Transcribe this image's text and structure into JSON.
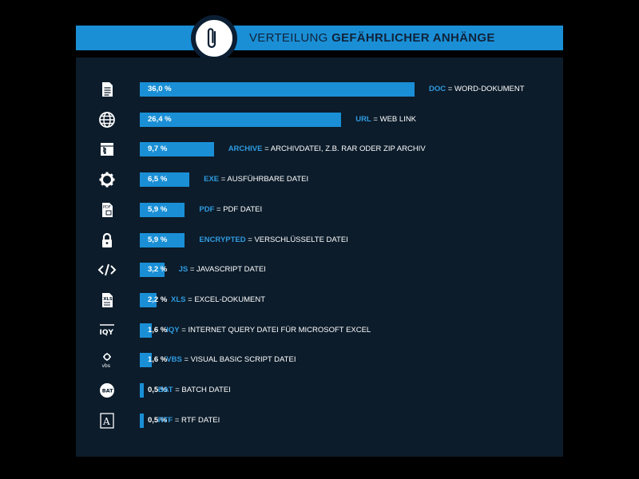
{
  "header": {
    "title_light": "VERTEILUNG ",
    "title_bold": "GEFÄHRLICHER ANHÄNGE",
    "badge_icon": "paperclip-icon"
  },
  "colors": {
    "accent": "#1a8fd6",
    "panel": "#0c1c2b",
    "code": "#2f9be0",
    "background": "#000000"
  },
  "chart_data": {
    "type": "bar",
    "orientation": "horizontal",
    "title": "VERTEILUNG GEFÄHRLICHER ANHÄNGE",
    "xlabel": "",
    "ylabel": "",
    "xlim": [
      0,
      40
    ],
    "categories": [
      "DOC",
      "URL",
      "ARCHIVE",
      "EXE",
      "PDF",
      "ENCRYPTED",
      "JS",
      "XLS",
      "IQY",
      "VBS",
      "BAT",
      "RTF"
    ],
    "values": [
      36.0,
      26.4,
      9.7,
      6.5,
      5.9,
      5.9,
      3.2,
      2.2,
      1.6,
      1.6,
      0.5,
      0.5
    ],
    "rows": [
      {
        "value": 36.0,
        "label": "36,0 %",
        "code": "DOC",
        "desc": "WORD-DOKUMENT",
        "icon": "document-icon"
      },
      {
        "value": 26.4,
        "label": "26,4 %",
        "code": "URL",
        "desc": "WEB LINK",
        "icon": "globe-icon"
      },
      {
        "value": 9.7,
        "label": "9,7 %",
        "code": "ARCHIVE",
        "desc": "ARCHIVDATEI, Z.B. RAR ODER ZIP ARCHIV",
        "icon": "archive-icon"
      },
      {
        "value": 6.5,
        "label": "6,5 %",
        "code": "EXE",
        "desc": "AUSFÜHRBARE DATEI",
        "icon": "gear-icon"
      },
      {
        "value": 5.9,
        "label": "5,9 %",
        "code": "PDF",
        "desc": "PDF DATEI",
        "icon": "pdf-file-icon"
      },
      {
        "value": 5.9,
        "label": "5,9 %",
        "code": "ENCRYPTED",
        "desc": "VERSCHLÜSSELTE DATEI",
        "icon": "lock-icon"
      },
      {
        "value": 3.2,
        "label": "3,2 %",
        "code": "JS",
        "desc": "JAVASCRIPT DATEI",
        "icon": "code-icon"
      },
      {
        "value": 2.2,
        "label": "2,2 %",
        "code": "XLS",
        "desc": "EXCEL-DOKUMENT",
        "icon": "xls-file-icon"
      },
      {
        "value": 1.6,
        "label": "1,6 %",
        "code": "IQY",
        "desc": "INTERNET QUERY DATEI FÜR MICROSOFT EXCEL",
        "icon": "iqy-icon"
      },
      {
        "value": 1.6,
        "label": "1,6 %",
        "code": "VBS",
        "desc": "VISUAL BASIC SCRIPT DATEI",
        "icon": "vbs-icon"
      },
      {
        "value": 0.5,
        "label": "0,5 %",
        "code": "BAT",
        "desc": "BATCH DATEI",
        "icon": "bat-icon"
      },
      {
        "value": 0.5,
        "label": "0,5 %",
        "code": "RTF",
        "desc": "RTF DATEI",
        "icon": "rtf-file-icon"
      }
    ]
  }
}
